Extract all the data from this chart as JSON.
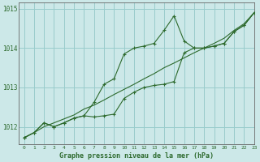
{
  "title": "Graphe pression niveau de la mer (hPa)",
  "background_color": "#cce8e8",
  "grid_color": "#99cccc",
  "line_color": "#2d6a2d",
  "xlim": [
    -0.5,
    23
  ],
  "ylim": [
    1011.55,
    1015.15
  ],
  "yticks": [
    1012,
    1013,
    1014,
    1015
  ],
  "xticks": [
    0,
    1,
    2,
    3,
    4,
    5,
    6,
    7,
    8,
    9,
    10,
    11,
    12,
    13,
    14,
    15,
    16,
    17,
    18,
    19,
    20,
    21,
    22,
    23
  ],
  "y_straight": [
    1011.72,
    1011.85,
    1012.0,
    1012.1,
    1012.2,
    1012.3,
    1012.45,
    1012.55,
    1012.68,
    1012.82,
    1012.95,
    1013.08,
    1013.22,
    1013.35,
    1013.5,
    1013.62,
    1013.75,
    1013.88,
    1014.0,
    1014.12,
    1014.25,
    1014.45,
    1014.62,
    1014.9
  ],
  "y_upper": [
    1011.72,
    1011.85,
    1012.1,
    1012.0,
    1012.1,
    1012.22,
    1012.28,
    1012.62,
    1013.08,
    1013.22,
    1013.85,
    1014.0,
    1014.05,
    1014.12,
    1014.45,
    1014.82,
    1014.18,
    1014.0,
    1014.0,
    1014.05,
    1014.12,
    1014.42,
    1014.58,
    1014.9
  ],
  "y_lower": [
    1011.72,
    1011.85,
    1012.1,
    1012.0,
    1012.1,
    1012.22,
    1012.28,
    1012.25,
    1012.28,
    1012.32,
    1012.72,
    1012.88,
    1013.0,
    1013.05,
    1013.08,
    1013.15,
    1013.88,
    1014.0,
    1014.0,
    1014.05,
    1014.12,
    1014.42,
    1014.58,
    1014.9
  ]
}
